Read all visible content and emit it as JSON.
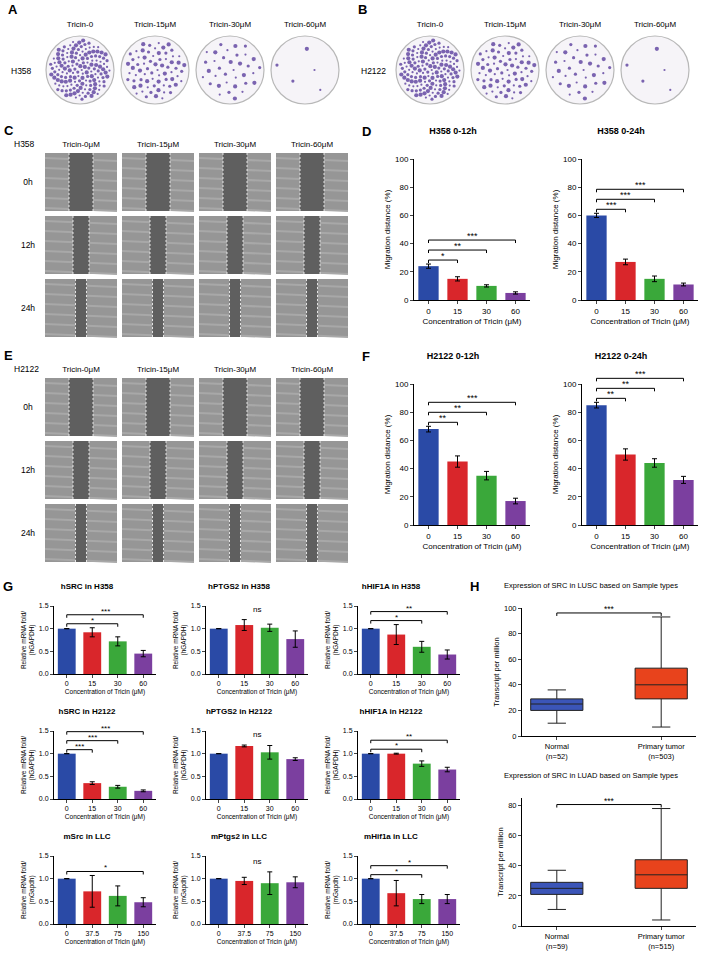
{
  "image_panels": [
    {
      "panel": "A",
      "row_label": "H358",
      "columns": [
        "Tricin-0",
        "Tricin-15μM",
        "Tricin-30μM",
        "Tricin-60μM"
      ]
    },
    {
      "panel": "B",
      "row_label": "H2122",
      "columns": [
        "Tricin-0",
        "Tricin-15μM",
        "Tricin-30μM",
        "Tricin-60μM"
      ]
    },
    {
      "panel": "C",
      "row_label": "H358",
      "columns": [
        "Tricin-0μM",
        "Tricin-15μM",
        "Tricin-30μM",
        "Tricin-60μM"
      ],
      "rows": [
        "0h",
        "12h",
        "24h"
      ]
    },
    {
      "panel": "E",
      "row_label": "H2122",
      "columns": [
        "Tricin-0μM",
        "Tricin-15μM",
        "Tricin-30μM",
        "Tricin-60μM"
      ],
      "rows": [
        "0h",
        "12h",
        "24h"
      ]
    }
  ],
  "chart_data": [
    {
      "panel": "D",
      "type": "bar",
      "title": "H358 0-12h",
      "x_label": "Concentration of Tricin (μM)",
      "y_label": "Migration distance (%)",
      "categories": [
        "0",
        "15",
        "30",
        "60"
      ],
      "values": [
        24,
        15,
        10,
        5
      ],
      "errors": [
        1.5,
        1.5,
        0.8,
        0.8
      ],
      "colors": [
        "#2a4aa6",
        "#d9262b",
        "#3aa83a",
        "#7b3f9f"
      ],
      "ylim": [
        0,
        100
      ],
      "yticks": [
        0,
        20,
        40,
        60,
        80,
        100
      ],
      "grid": false,
      "significance": [
        {
          "pair": [
            "0",
            "15"
          ],
          "label": "*"
        },
        {
          "pair": [
            "0",
            "30"
          ],
          "label": "**"
        },
        {
          "pair": [
            "0",
            "60"
          ],
          "label": "***"
        }
      ]
    },
    {
      "type": "bar",
      "title": "H358 0-24h",
      "x_label": "Concentration of Tricin (μM)",
      "y_label": "Migration distance (%)",
      "categories": [
        "0",
        "15",
        "30",
        "60"
      ],
      "values": [
        60,
        27,
        15,
        11
      ],
      "errors": [
        1.5,
        2,
        2,
        1
      ],
      "colors": [
        "#2a4aa6",
        "#d9262b",
        "#3aa83a",
        "#7b3f9f"
      ],
      "ylim": [
        0,
        100
      ],
      "yticks": [
        0,
        20,
        40,
        60,
        80,
        100
      ],
      "grid": false,
      "significance": [
        {
          "pair": [
            "0",
            "15"
          ],
          "label": "***"
        },
        {
          "pair": [
            "0",
            "30"
          ],
          "label": "***"
        },
        {
          "pair": [
            "0",
            "60"
          ],
          "label": "***"
        }
      ]
    },
    {
      "panel": "F",
      "type": "bar",
      "title": "H2122 0-12h",
      "x_label": "Concentration of Tricin (μM)",
      "y_label": "Migration distance (%)",
      "categories": [
        "0",
        "15",
        "30",
        "60"
      ],
      "values": [
        68,
        45,
        35,
        17
      ],
      "errors": [
        2,
        4,
        3,
        2
      ],
      "colors": [
        "#2a4aa6",
        "#d9262b",
        "#3aa83a",
        "#7b3f9f"
      ],
      "ylim": [
        0,
        100
      ],
      "yticks": [
        0,
        20,
        40,
        60,
        80,
        100
      ],
      "grid": false,
      "significance": [
        {
          "pair": [
            "0",
            "15"
          ],
          "label": "**"
        },
        {
          "pair": [
            "0",
            "30"
          ],
          "label": "**"
        },
        {
          "pair": [
            "0",
            "60"
          ],
          "label": "***"
        }
      ]
    },
    {
      "type": "bar",
      "title": "H2122 0-24h",
      "x_label": "Concentration of Tricin (μM)",
      "y_label": "Migration distance (%)",
      "categories": [
        "0",
        "15",
        "30",
        "60"
      ],
      "values": [
        85,
        50,
        44,
        32
      ],
      "errors": [
        2,
        4,
        3,
        2.5
      ],
      "colors": [
        "#2a4aa6",
        "#d9262b",
        "#3aa83a",
        "#7b3f9f"
      ],
      "ylim": [
        0,
        100
      ],
      "yticks": [
        0,
        20,
        40,
        60,
        80,
        100
      ],
      "grid": false,
      "significance": [
        {
          "pair": [
            "0",
            "15"
          ],
          "label": "**"
        },
        {
          "pair": [
            "0",
            "30"
          ],
          "label": "**"
        },
        {
          "pair": [
            "0",
            "60"
          ],
          "label": "***"
        }
      ]
    },
    {
      "panel": "G",
      "type": "bar",
      "title": "hSRC in H358",
      "x_label": "Concentration of Tricin (μM)",
      "y_label": "Relative mRNA fold/ (hGAPDH)",
      "categories": [
        "0",
        "15",
        "30",
        "60"
      ],
      "values": [
        1.0,
        0.92,
        0.72,
        0.45
      ],
      "errors": [
        0,
        0.1,
        0.1,
        0.07
      ],
      "colors": [
        "#2a4aa6",
        "#d9262b",
        "#3aa83a",
        "#7b3f9f"
      ],
      "ylim": [
        0,
        1.5
      ],
      "yticks": [
        {
          "value": 0,
          "label": "0.0"
        },
        0.5,
        {
          "value": 1,
          "label": "1.0"
        },
        1.5
      ],
      "grid": false,
      "significance": [
        {
          "pair": [
            "0",
            "30"
          ],
          "label": "*"
        },
        {
          "pair": [
            "0",
            "60"
          ],
          "label": "***"
        }
      ]
    },
    {
      "type": "bar",
      "title": "hPTGS2 in H358",
      "x_label": "Concentration of Tricin (μM)",
      "y_label": "Relative mRNA fold/ (hGAPDH)",
      "categories": [
        "0",
        "15",
        "30",
        "60"
      ],
      "values": [
        1.0,
        1.08,
        1.02,
        0.77
      ],
      "errors": [
        0,
        0.12,
        0.08,
        0.18
      ],
      "colors": [
        "#2a4aa6",
        "#d9262b",
        "#3aa83a",
        "#7b3f9f"
      ],
      "ylim": [
        0,
        1.5
      ],
      "yticks": [
        {
          "value": 0,
          "label": "0.0"
        },
        0.5,
        {
          "value": 1,
          "label": "1.0"
        },
        1.5
      ],
      "grid": false,
      "significance": [
        {
          "label": "ns"
        }
      ]
    },
    {
      "type": "bar",
      "title": "hHIF1A in H358",
      "x_label": "Concentration of Tricin (μM)",
      "y_label": "Relative mRNA fold/ (hGAPDH)",
      "categories": [
        "0",
        "15",
        "30",
        "60"
      ],
      "values": [
        1.0,
        0.87,
        0.6,
        0.43
      ],
      "errors": [
        0,
        0.22,
        0.12,
        0.1
      ],
      "colors": [
        "#2a4aa6",
        "#d9262b",
        "#3aa83a",
        "#7b3f9f"
      ],
      "ylim": [
        0,
        1.5
      ],
      "yticks": [
        {
          "value": 0,
          "label": "0.0"
        },
        0.5,
        {
          "value": 1,
          "label": "1.0"
        },
        1.5
      ],
      "grid": false,
      "significance": [
        {
          "pair": [
            "0",
            "30"
          ],
          "label": "*"
        },
        {
          "pair": [
            "0",
            "60"
          ],
          "label": "**"
        }
      ]
    },
    {
      "type": "bar",
      "title": "hSRC in H2122",
      "x_label": "Concentration of Tricin (μM)",
      "y_label": "Relative mRNA fold/ (hGAPDH)",
      "categories": [
        "0",
        "15",
        "30",
        "60"
      ],
      "values": [
        1.0,
        0.35,
        0.27,
        0.18
      ],
      "errors": [
        0,
        0.03,
        0.03,
        0.02
      ],
      "colors": [
        "#2a4aa6",
        "#d9262b",
        "#3aa83a",
        "#7b3f9f"
      ],
      "ylim": [
        0,
        1.5
      ],
      "yticks": [
        {
          "value": 0,
          "label": "0.0"
        },
        0.5,
        {
          "value": 1,
          "label": "1.0"
        },
        1.5
      ],
      "grid": false,
      "significance": [
        {
          "pair": [
            "0",
            "15"
          ],
          "label": "***"
        },
        {
          "pair": [
            "0",
            "30"
          ],
          "label": "***"
        },
        {
          "pair": [
            "0",
            "60"
          ],
          "label": "***"
        }
      ]
    },
    {
      "type": "bar",
      "title": "hPTGS2 in H2122",
      "x_label": "Concentration of Tricin (μM)",
      "y_label": "Relative mRNA fold/ (hGAPDH)",
      "categories": [
        "0",
        "15",
        "30",
        "60"
      ],
      "values": [
        1.0,
        1.17,
        1.03,
        0.88
      ],
      "errors": [
        0,
        0.02,
        0.15,
        0.03
      ],
      "colors": [
        "#2a4aa6",
        "#d9262b",
        "#3aa83a",
        "#7b3f9f"
      ],
      "ylim": [
        0,
        1.5
      ],
      "yticks": [
        {
          "value": 0,
          "label": "0.0"
        },
        0.5,
        {
          "value": 1,
          "label": "1.0"
        },
        1.5
      ],
      "grid": false,
      "significance": [
        {
          "label": "ns"
        }
      ]
    },
    {
      "type": "bar",
      "title": "hHIF1A in H2122",
      "x_label": "Concentration of Tricin (μM)",
      "y_label": "Relative mRNA fold/ (hGAPDH)",
      "categories": [
        "0",
        "15",
        "30",
        "60"
      ],
      "values": [
        1.0,
        1.0,
        0.78,
        0.65
      ],
      "errors": [
        0,
        0.01,
        0.06,
        0.05
      ],
      "colors": [
        "#2a4aa6",
        "#d9262b",
        "#3aa83a",
        "#7b3f9f"
      ],
      "ylim": [
        0,
        1.5
      ],
      "yticks": [
        {
          "value": 0,
          "label": "0.0"
        },
        0.5,
        {
          "value": 1,
          "label": "1.0"
        },
        1.5
      ],
      "grid": false,
      "significance": [
        {
          "pair": [
            "0",
            "30"
          ],
          "label": "*"
        },
        {
          "pair": [
            "0",
            "60"
          ],
          "label": "**"
        }
      ]
    },
    {
      "type": "bar",
      "title": "mSrc in LLC",
      "x_label": "Concentration of Tricin (μM)",
      "y_label": "Relative mRNA fold/ (mGapdh)",
      "categories": [
        "0",
        "37.5",
        "75",
        "150"
      ],
      "values": [
        1.0,
        0.72,
        0.62,
        0.48
      ],
      "errors": [
        0,
        0.35,
        0.22,
        0.1
      ],
      "colors": [
        "#2a4aa6",
        "#d9262b",
        "#3aa83a",
        "#7b3f9f"
      ],
      "ylim": [
        0,
        1.5
      ],
      "yticks": [
        {
          "value": 0,
          "label": "0.0"
        },
        0.5,
        {
          "value": 1,
          "label": "1.0"
        },
        1.5
      ],
      "grid": false,
      "significance": [
        {
          "pair": [
            "0",
            "150"
          ],
          "label": "*"
        }
      ]
    },
    {
      "type": "bar",
      "title": "mPtgs2 in LLC",
      "x_label": "Concentration of Tricin (μM)",
      "y_label": "Relative mRNA fold/ (mGapdh)",
      "categories": [
        "0",
        "37.5",
        "75",
        "150"
      ],
      "values": [
        1.0,
        0.95,
        0.9,
        0.92
      ],
      "errors": [
        0,
        0.08,
        0.25,
        0.12
      ],
      "colors": [
        "#2a4aa6",
        "#d9262b",
        "#3aa83a",
        "#7b3f9f"
      ],
      "ylim": [
        0,
        1.5
      ],
      "yticks": [
        {
          "value": 0,
          "label": "0.0"
        },
        0.5,
        {
          "value": 1,
          "label": "1.0"
        },
        1.5
      ],
      "grid": false,
      "significance": [
        {
          "label": "ns"
        }
      ]
    },
    {
      "type": "bar",
      "title": "mHif1a in LLC",
      "x_label": "Concentration of Tricin (μM)",
      "y_label": "Relative mRNA fold/ (mGapdh)",
      "categories": [
        "0",
        "37.5",
        "75",
        "150"
      ],
      "values": [
        1.0,
        0.68,
        0.55,
        0.55
      ],
      "errors": [
        0,
        0.28,
        0.1,
        0.1
      ],
      "colors": [
        "#2a4aa6",
        "#d9262b",
        "#3aa83a",
        "#7b3f9f"
      ],
      "ylim": [
        0,
        1.5
      ],
      "yticks": [
        {
          "value": 0,
          "label": "0.0"
        },
        0.5,
        {
          "value": 1,
          "label": "1.0"
        },
        1.5
      ],
      "grid": false,
      "significance": [
        {
          "pair": [
            "0",
            "75"
          ],
          "label": "*"
        },
        {
          "pair": [
            "0",
            "150"
          ],
          "label": "*"
        }
      ]
    },
    {
      "panel": "H",
      "type": "box",
      "title": "Expression of SRC in LUSC based on Sample types",
      "y_label": "Transcript per million",
      "categories": [
        "Normal (n=52)",
        "Primary tumor (n=503)"
      ],
      "box_stats": [
        {
          "min": 10,
          "q1": 20,
          "median": 25,
          "q3": 29,
          "max": 36
        },
        {
          "min": 7,
          "q1": 29,
          "median": 40,
          "q3": 53,
          "max": 93
        }
      ],
      "colors": [
        "#3b55b8",
        "#e8431c"
      ],
      "ylim": [
        0,
        100
      ],
      "yticks": [
        0,
        20,
        40,
        60,
        80,
        100
      ],
      "grid": false,
      "significance": [
        {
          "pair": [
            "Normal (n=52)",
            "Primary tumor (n=503)"
          ],
          "label": "***"
        }
      ]
    },
    {
      "type": "box",
      "title": "Expression of SRC in LUAD based on Sample types",
      "y_label": "Transcript per million",
      "categories": [
        "Normal (n=59)",
        "Primary tumor (n=515)"
      ],
      "box_stats": [
        {
          "min": 11,
          "q1": 21,
          "median": 25,
          "q3": 29,
          "max": 37
        },
        {
          "min": 4,
          "q1": 25,
          "median": 34,
          "q3": 44,
          "max": 78
        }
      ],
      "colors": [
        "#3b55b8",
        "#e8431c"
      ],
      "ylim": [
        0,
        85
      ],
      "yticks": [
        0,
        20,
        40,
        60,
        80
      ],
      "grid": false,
      "significance": [
        {
          "pair": [
            "Normal (n=59)",
            "Primary tumor (n=515)"
          ],
          "label": "***"
        }
      ]
    }
  ]
}
